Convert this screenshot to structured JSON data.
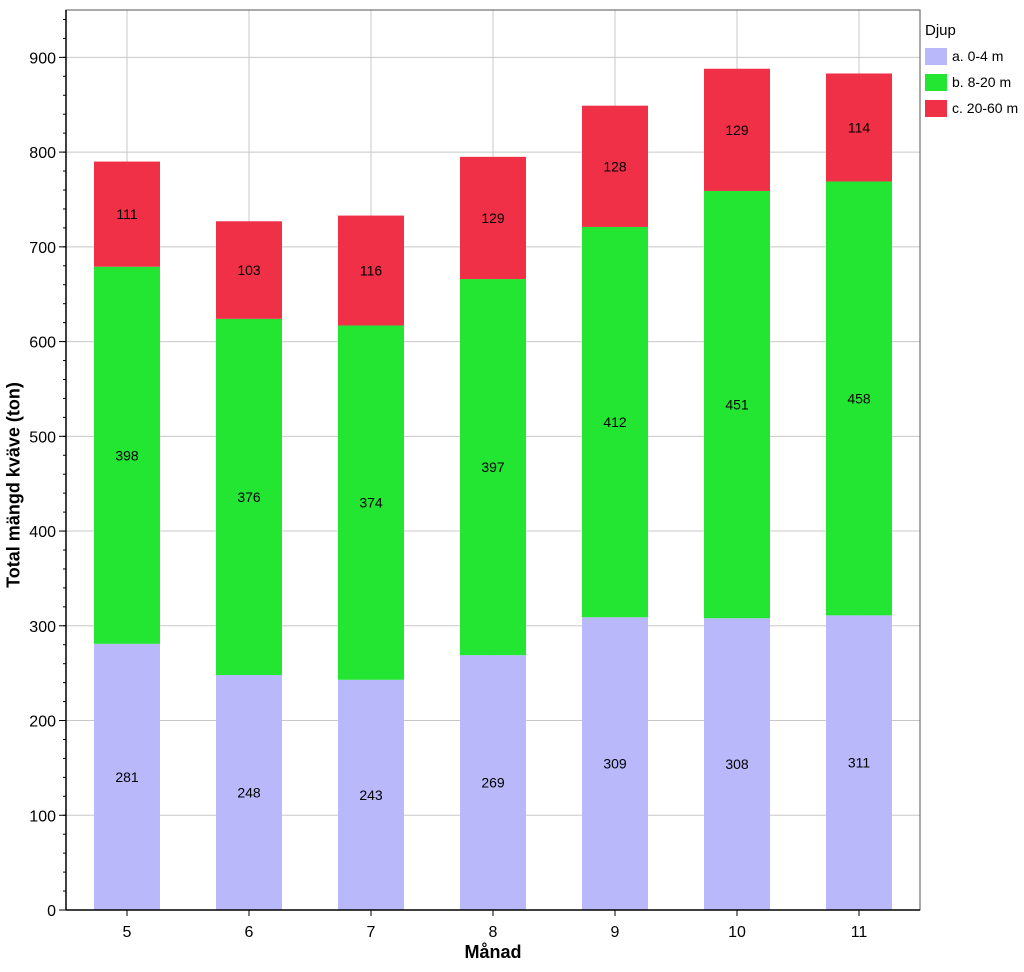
{
  "chart_data": {
    "type": "bar",
    "stacked": true,
    "categories": [
      "5",
      "6",
      "7",
      "8",
      "9",
      "10",
      "11"
    ],
    "series": [
      {
        "name": "a. 0-4 m",
        "color": "#b8b8fb",
        "values": [
          281,
          248,
          243,
          269,
          309,
          308,
          311
        ]
      },
      {
        "name": "b. 8-20 m",
        "color": "#23e633",
        "values": [
          398,
          376,
          374,
          397,
          412,
          451,
          458
        ]
      },
      {
        "name": "c. 20-60 m",
        "color": "#ef3047",
        "values": [
          111,
          103,
          116,
          129,
          128,
          129,
          114
        ]
      }
    ],
    "xlabel": "Månad",
    "ylabel": "Total mängd kväve (ton)",
    "ylim": [
      0,
      950
    ],
    "yticks": [
      0,
      100,
      200,
      300,
      400,
      500,
      600,
      700,
      800,
      900
    ],
    "grid": true,
    "legend": {
      "title": "Djup",
      "position": "right"
    }
  }
}
